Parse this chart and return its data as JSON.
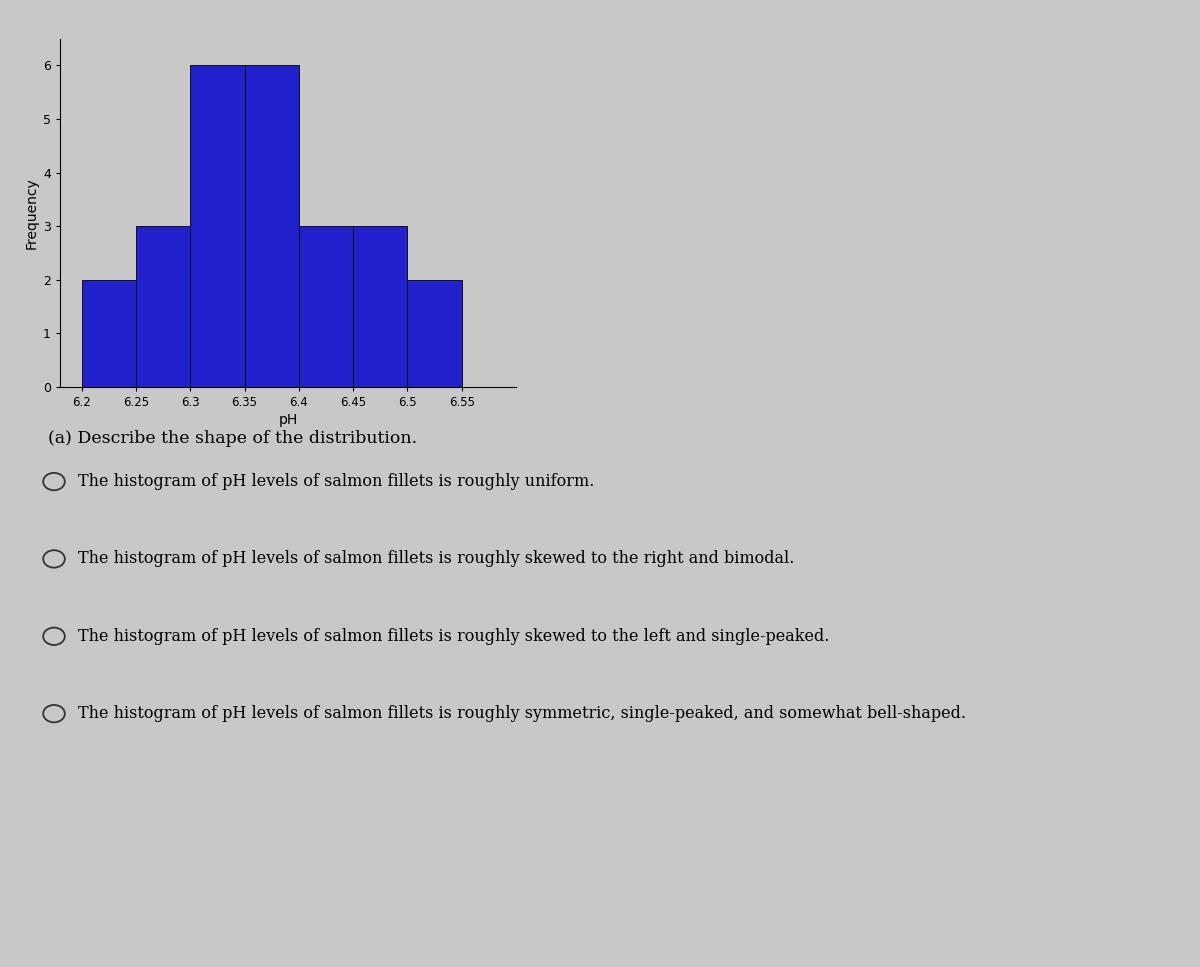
{
  "bar_edges": [
    6.2,
    6.25,
    6.3,
    6.35,
    6.4,
    6.45,
    6.5,
    6.55
  ],
  "bar_heights": [
    2,
    3,
    6,
    6,
    3,
    3,
    2
  ],
  "bar_color": "#2020cc",
  "bar_edgecolor": "#111111",
  "ylabel": "Frequency",
  "xlabel": "pH",
  "yticks": [
    0,
    1,
    2,
    3,
    4,
    5,
    6
  ],
  "xtick_labels": [
    "6.2",
    "6.25",
    "6.3",
    "6.35",
    "6.4",
    "6.45",
    "6.5",
    "6.55"
  ],
  "ylim": [
    0,
    6.5
  ],
  "xlim": [
    6.18,
    6.6
  ],
  "question_text": "(a) Describe the shape of the distribution.",
  "options": [
    "The histogram of pH levels of salmon fillets is roughly uniform.",
    "The histogram of pH levels of salmon fillets is roughly skewed to the right and bimodal.",
    "The histogram of pH levels of salmon fillets is roughly skewed to the left and single-peaked.",
    "The histogram of pH levels of salmon fillets is roughly symmetric, single-peaked, and somewhat bell-shaped."
  ],
  "bg_color": "#c8c8c8",
  "plot_bg_color": "#c8c8c8",
  "fig_width": 12.0,
  "fig_height": 9.67
}
